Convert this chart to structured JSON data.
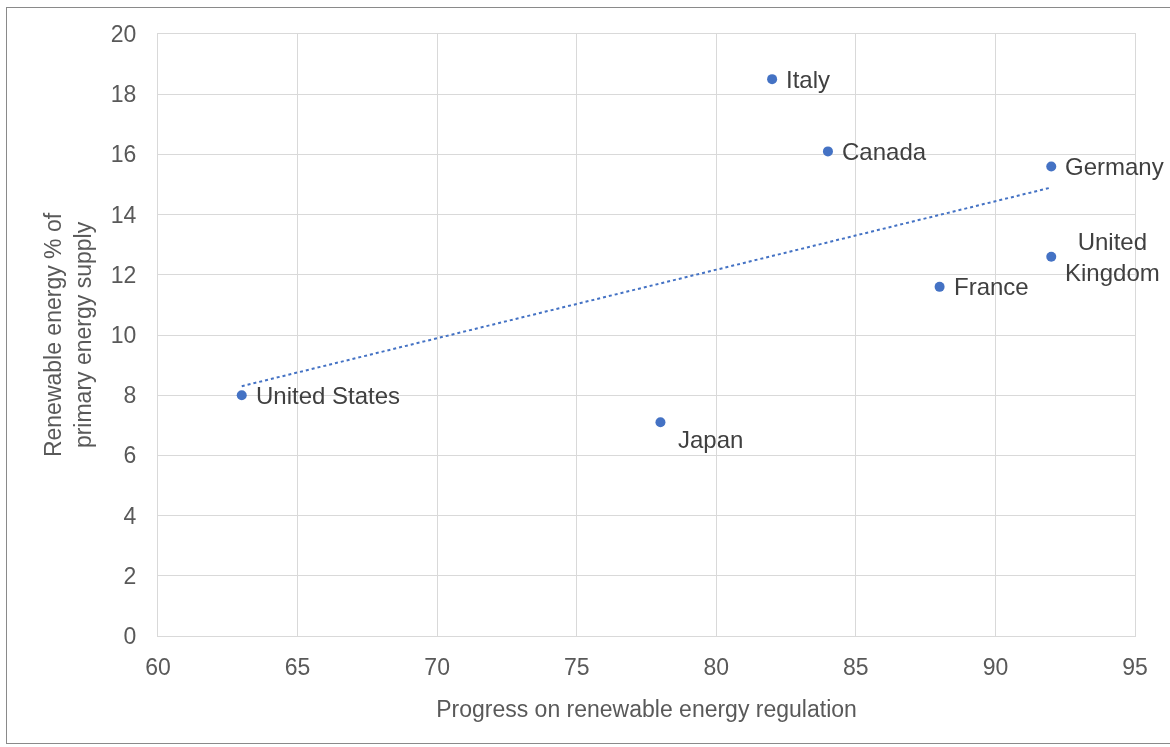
{
  "chart_data": {
    "type": "scatter",
    "xlabel": "Progress on renewable energy regulation",
    "ylabel": "Renewable energy % of primary energy supply",
    "xlim": [
      60,
      95
    ],
    "xticks": [
      60,
      65,
      70,
      75,
      80,
      85,
      90,
      95
    ],
    "ylim": [
      0,
      20
    ],
    "yticks": [
      0,
      2,
      4,
      6,
      8,
      10,
      12,
      14,
      16,
      18,
      20
    ],
    "grid": true,
    "marker": "circle",
    "series": [
      {
        "color": "#4472c4",
        "x": [
          63,
          78,
          82,
          84,
          88,
          92,
          92
        ],
        "values": [
          8,
          7.1,
          18.5,
          16.1,
          11.6,
          15.6,
          12.6
        ]
      },
      {
        "type": "line",
        "color": "#4472c4",
        "x": [
          63,
          92
        ],
        "values": [
          8.3,
          14.9
        ],
        "line_style": "dotted",
        "marker": "none"
      }
    ],
    "annotations": [
      {
        "text": "United States",
        "x": 63,
        "y": 8
      },
      {
        "text": "Japan",
        "x": 78,
        "y": 7.1
      },
      {
        "text": "Italy",
        "x": 82,
        "y": 18.5
      },
      {
        "text": "Canada",
        "x": 84,
        "y": 16.1
      },
      {
        "text": "France",
        "x": 88,
        "y": 11.6
      },
      {
        "text": "Germany",
        "x": 92,
        "y": 15.6
      },
      {
        "text": "United Kingdom",
        "x": 92,
        "y": 12.6
      }
    ]
  }
}
